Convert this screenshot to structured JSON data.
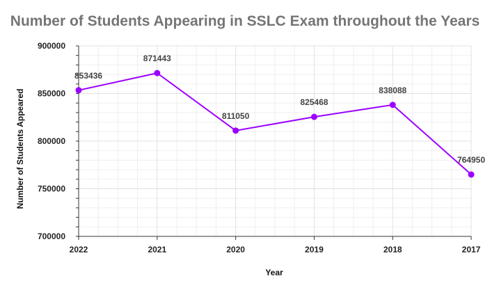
{
  "chart_data": {
    "type": "line",
    "title": "Number of Students Appearing in SSLC Exam throughout the Years",
    "xlabel": "Year",
    "ylabel": "Number of Students Appeared",
    "categories": [
      "2022",
      "2021",
      "2020",
      "2019",
      "2018",
      "2017"
    ],
    "series": [
      {
        "values": [
          853436,
          871443,
          811050,
          825468,
          838088,
          764950
        ]
      }
    ],
    "data_labels": [
      "853436",
      "871443",
      "811050",
      "825468",
      "838088",
      "764950"
    ],
    "ylim": [
      700000,
      900000
    ],
    "yticks": [
      700000,
      750000,
      800000,
      850000,
      900000
    ],
    "ytick_labels": [
      "700000",
      "750000",
      "800000",
      "850000",
      "900000"
    ],
    "grid": true,
    "legend": "none",
    "colors": {
      "line": "#9c00ff",
      "grid": "#e0e0e0",
      "title": "#757575"
    }
  }
}
